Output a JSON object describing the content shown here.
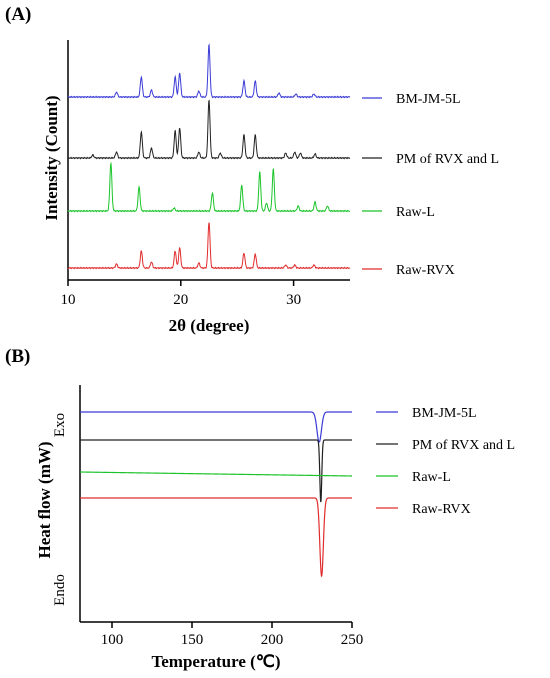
{
  "chart_data": [
    {
      "panel": "(A)",
      "type": "line",
      "xlabel": "2θ (degree)",
      "ylabel": "Intensity (Count)",
      "xlim": [
        10,
        35
      ],
      "xticks": [
        10,
        20,
        30
      ],
      "grid": false,
      "legend_position": "right",
      "series": [
        {
          "name": "BM-JM-5L",
          "color": "#3b3bd6",
          "peaks": [
            [
              14.3,
              5
            ],
            [
              16.5,
              20
            ],
            [
              17.4,
              7
            ],
            [
              19.5,
              20
            ],
            [
              19.9,
              24
            ],
            [
              21.6,
              6
            ],
            [
              22.5,
              52
            ],
            [
              25.6,
              16
            ],
            [
              26.6,
              16
            ],
            [
              28.7,
              4
            ],
            [
              30.2,
              3
            ],
            [
              31.8,
              3
            ]
          ]
        },
        {
          "name": "PM of RVX and L",
          "color": "#202020",
          "peaks": [
            [
              12.2,
              3
            ],
            [
              14.3,
              6
            ],
            [
              16.5,
              26
            ],
            [
              17.4,
              10
            ],
            [
              19.5,
              27
            ],
            [
              19.9,
              30
            ],
            [
              21.6,
              6
            ],
            [
              22.5,
              58
            ],
            [
              23.5,
              5
            ],
            [
              25.6,
              23
            ],
            [
              26.6,
              23
            ],
            [
              29.3,
              5
            ],
            [
              30.1,
              6
            ],
            [
              30.6,
              5
            ],
            [
              31.9,
              4
            ]
          ]
        },
        {
          "name": "Raw-L",
          "color": "#1bc42a",
          "peaks": [
            [
              13.8,
              48
            ],
            [
              16.3,
              24
            ],
            [
              19.4,
              3
            ],
            [
              22.8,
              18
            ],
            [
              25.4,
              26
            ],
            [
              27.0,
              39
            ],
            [
              27.6,
              8
            ],
            [
              28.2,
              42
            ],
            [
              30.4,
              5
            ],
            [
              31.9,
              9
            ],
            [
              33.0,
              5
            ]
          ]
        },
        {
          "name": "Raw-RVX",
          "color": "#e02c2c",
          "peaks": [
            [
              14.3,
              4
            ],
            [
              16.5,
              17
            ],
            [
              17.4,
              6
            ],
            [
              19.5,
              17
            ],
            [
              19.9,
              20
            ],
            [
              21.6,
              5
            ],
            [
              22.5,
              46
            ],
            [
              25.6,
              15
            ],
            [
              26.6,
              14
            ],
            [
              29.3,
              3
            ],
            [
              30.1,
              3
            ],
            [
              31.8,
              3
            ]
          ]
        }
      ]
    },
    {
      "panel": "(B)",
      "type": "line",
      "xlabel": "Temperature (℃)",
      "ylabel": "Heat flow (mW)",
      "top_label": "Exo",
      "bottom_label": "Endo",
      "xlim": [
        80,
        250
      ],
      "xticks": [
        100,
        150,
        200,
        250
      ],
      "grid": false,
      "legend_position": "right",
      "series": [
        {
          "name": "BM-JM-5L",
          "color": "#3b3bd6",
          "baseline": 0,
          "peak_center": 229.5,
          "peak_depth": 30,
          "peak_width": 1.4
        },
        {
          "name": "PM of RVX and L",
          "color": "#202020",
          "baseline": 0,
          "peak_center": 230.5,
          "peak_depth": 62,
          "peak_width": 0.6
        },
        {
          "name": "Raw-L",
          "color": "#1bc42a",
          "baseline": 0,
          "peak_center": 0,
          "peak_depth": 0,
          "peak_width": 1
        },
        {
          "name": "Raw-RVX",
          "color": "#e02c2c",
          "baseline": 0,
          "peak_center": 231.0,
          "peak_depth": 78,
          "peak_width": 1.1
        }
      ]
    }
  ]
}
